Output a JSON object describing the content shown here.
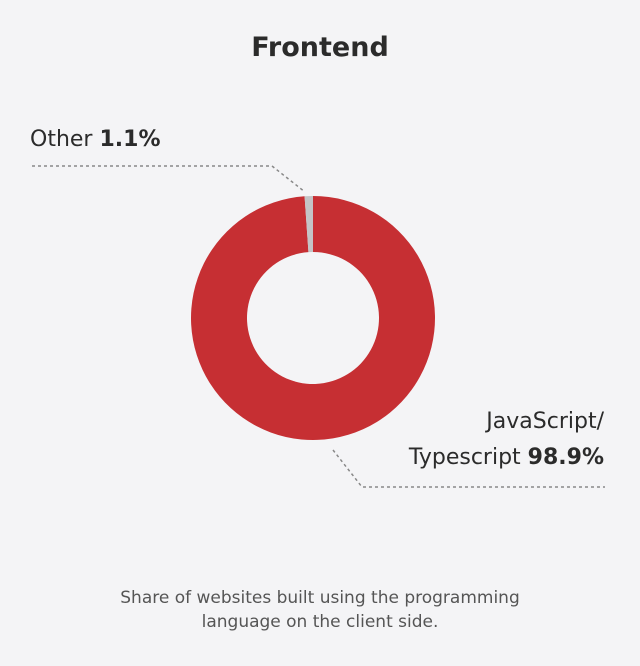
{
  "chart_data": {
    "type": "pie",
    "title": "Frontend",
    "categories": [
      "JavaScript/ Typescript",
      "Other"
    ],
    "values": [
      98.9,
      1.1
    ],
    "value_labels": [
      "98.9%",
      "1.1%"
    ],
    "colors": [
      "#c62f33",
      "#c4c4c6"
    ],
    "caption": "Share of websites built using the programming language on the client side."
  }
}
